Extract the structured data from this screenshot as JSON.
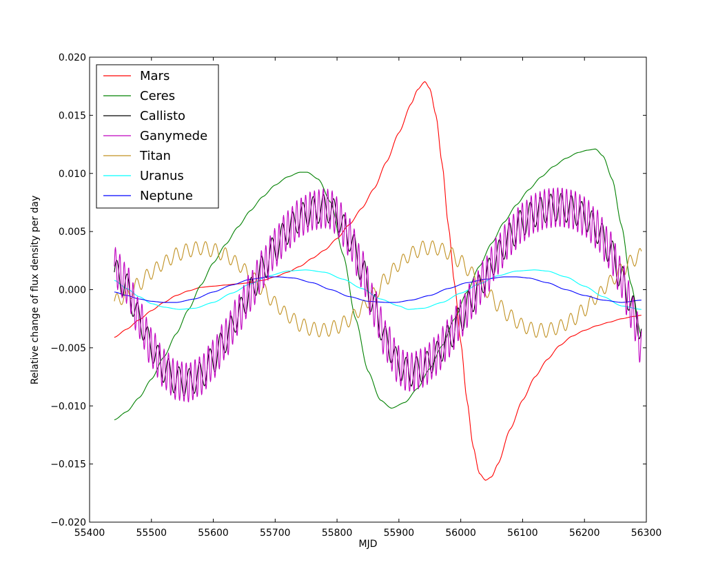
{
  "chart_data": {
    "type": "line",
    "title": "",
    "xlabel": "MJD",
    "ylabel": "Relative change of flux density per day",
    "xlim": [
      55400,
      56300
    ],
    "ylim": [
      -0.02,
      0.02
    ],
    "x_ticks": [
      55400,
      55500,
      55600,
      55700,
      55800,
      55900,
      56000,
      56100,
      56200,
      56300
    ],
    "y_ticks": [
      -0.02,
      -0.015,
      -0.01,
      -0.005,
      0.0,
      0.005,
      0.01,
      0.015,
      0.02
    ],
    "x_tick_labels": [
      "55400",
      "55500",
      "55600",
      "55700",
      "55800",
      "55900",
      "56000",
      "56100",
      "56200",
      "56300"
    ],
    "y_tick_labels": [
      "−0.020",
      "−0.015",
      "−0.010",
      "−0.005",
      "0.000",
      "0.005",
      "0.010",
      "0.015",
      "0.020"
    ],
    "grid": false,
    "legend_position": "top-left",
    "series": [
      {
        "name": "Mars",
        "color": "#ff0000",
        "x": [
          55440,
          55460,
          55480,
          55500,
          55520,
          55540,
          55560,
          55580,
          55600,
          55620,
          55640,
          55660,
          55680,
          55700,
          55720,
          55740,
          55760,
          55780,
          55800,
          55820,
          55840,
          55860,
          55880,
          55900,
          55920,
          55930,
          55942,
          55950,
          55960,
          55970,
          55980,
          55990,
          56000,
          56010,
          56020,
          56030,
          56040,
          56050,
          56060,
          56080,
          56100,
          56120,
          56140,
          56160,
          56180,
          56200,
          56220,
          56240,
          56260,
          56280,
          56292
        ],
        "y": [
          -0.0041,
          -0.0034,
          -0.0026,
          -0.0018,
          -0.0011,
          -0.0005,
          -0.0001,
          0.0002,
          0.0003,
          0.0004,
          0.0005,
          0.0006,
          0.0008,
          0.0011,
          0.0015,
          0.002,
          0.0027,
          0.0034,
          0.0044,
          0.0056,
          0.007,
          0.0087,
          0.011,
          0.0135,
          0.016,
          0.0172,
          0.0179,
          0.0173,
          0.015,
          0.0108,
          0.0055,
          0.0005,
          -0.0045,
          -0.0095,
          -0.0135,
          -0.0158,
          -0.0164,
          -0.0161,
          -0.015,
          -0.012,
          -0.0095,
          -0.0075,
          -0.006,
          -0.0048,
          -0.004,
          -0.0035,
          -0.0031,
          -0.0028,
          -0.0025,
          -0.0023,
          -0.0022
        ]
      },
      {
        "name": "Ceres",
        "color": "#008000",
        "x": [
          55440,
          55460,
          55480,
          55500,
          55520,
          55540,
          55560,
          55580,
          55600,
          55620,
          55640,
          55660,
          55680,
          55700,
          55720,
          55740,
          55752,
          55770,
          55790,
          55810,
          55830,
          55850,
          55870,
          55888,
          55910,
          55930,
          55950,
          55970,
          55990,
          56010,
          56030,
          56050,
          56070,
          56090,
          56110,
          56130,
          56150,
          56170,
          56190,
          56205,
          56218,
          56230,
          56245,
          56260,
          56275,
          56292
        ],
        "y": [
          -0.0112,
          -0.0105,
          -0.0093,
          -0.0077,
          -0.0058,
          -0.0038,
          -0.0017,
          0.0004,
          0.0023,
          0.0039,
          0.0054,
          0.0068,
          0.008,
          0.009,
          0.0097,
          0.0101,
          0.0101,
          0.0095,
          0.0075,
          0.003,
          -0.0025,
          -0.007,
          -0.0095,
          -0.0102,
          -0.0097,
          -0.0085,
          -0.0068,
          -0.0048,
          -0.0025,
          -0.0002,
          0.002,
          0.004,
          0.0058,
          0.0073,
          0.0086,
          0.0097,
          0.0106,
          0.0113,
          0.0118,
          0.012,
          0.0121,
          0.0115,
          0.0095,
          0.0055,
          0.0005,
          -0.004
        ]
      },
      {
        "name": "Callisto",
        "color": "#000000",
        "x": [
          55440,
          55460,
          55480,
          55500,
          55520,
          55540,
          55560,
          55580,
          55600,
          55620,
          55640,
          55660,
          55680,
          55700,
          55720,
          55740,
          55760,
          55780,
          55790,
          55800,
          55820,
          55840,
          55860,
          55880,
          55900,
          55910,
          55920,
          55940,
          55960,
          55980,
          56000,
          56020,
          56040,
          56060,
          56080,
          56100,
          56120,
          56140,
          56160,
          56180,
          56200,
          56220,
          56240,
          56260,
          56270,
          56280,
          56292
        ],
        "y": [
          0.0015,
          0.0002,
          -0.0025,
          -0.005,
          -0.0068,
          -0.0078,
          -0.008,
          -0.0074,
          -0.006,
          -0.0042,
          -0.0022,
          -0.0002,
          0.0018,
          0.0036,
          0.0051,
          0.0062,
          0.0068,
          0.007,
          0.0069,
          0.0063,
          0.0045,
          0.0018,
          -0.0015,
          -0.0045,
          -0.0065,
          -0.007,
          -0.0071,
          -0.0067,
          -0.0057,
          -0.0042,
          -0.0025,
          -0.0007,
          0.0011,
          0.003,
          0.0046,
          0.0058,
          0.0066,
          0.007,
          0.0071,
          0.0069,
          0.0063,
          0.0052,
          0.0035,
          0.001,
          -0.0005,
          -0.0018,
          -0.0035
        ]
      },
      {
        "name": "Ganymede",
        "color": "#bf00bf",
        "x": [
          55440,
          55460,
          55480,
          55500,
          55520,
          55540,
          55560,
          55580,
          55600,
          55620,
          55640,
          55660,
          55680,
          55700,
          55720,
          55740,
          55760,
          55780,
          55790,
          55800,
          55820,
          55840,
          55860,
          55880,
          55900,
          55910,
          55920,
          55940,
          55960,
          55980,
          56000,
          56020,
          56040,
          56060,
          56080,
          56100,
          56120,
          56140,
          56160,
          56180,
          56200,
          56220,
          56240,
          56260,
          56270,
          56280,
          56292
        ],
        "y": [
          0.002,
          0.0005,
          -0.0025,
          -0.005,
          -0.0068,
          -0.0078,
          -0.008,
          -0.0074,
          -0.006,
          -0.0042,
          -0.0022,
          -0.0002,
          0.0018,
          0.0036,
          0.0051,
          0.0062,
          0.0068,
          0.007,
          0.0069,
          0.0063,
          0.0045,
          0.0018,
          -0.0015,
          -0.0045,
          -0.0065,
          -0.007,
          -0.0071,
          -0.0067,
          -0.0057,
          -0.0042,
          -0.0025,
          -0.0007,
          0.0011,
          0.003,
          0.0046,
          0.0058,
          0.0066,
          0.007,
          0.0071,
          0.0069,
          0.0063,
          0.0052,
          0.0035,
          0.001,
          -0.0008,
          -0.0025,
          -0.005
        ]
      },
      {
        "name": "Titan",
        "color": "#c09020",
        "x": [
          55440,
          55460,
          55480,
          55500,
          55520,
          55540,
          55560,
          55580,
          55600,
          55620,
          55640,
          55660,
          55680,
          55700,
          55720,
          55740,
          55760,
          55780,
          55800,
          55820,
          55840,
          55860,
          55880,
          55900,
          55920,
          55940,
          55960,
          55980,
          56000,
          56020,
          56040,
          56060,
          56080,
          56100,
          56120,
          56140,
          56160,
          56180,
          56200,
          56220,
          56240,
          56260,
          56280,
          56292
        ],
        "y": [
          -0.001,
          -0.0005,
          0.0005,
          0.0015,
          0.0023,
          0.003,
          0.0034,
          0.0036,
          0.0034,
          0.003,
          0.0022,
          0.0012,
          0.0,
          -0.0012,
          -0.0022,
          -0.003,
          -0.0034,
          -0.0035,
          -0.0032,
          -0.0026,
          -0.0016,
          -0.0004,
          0.001,
          0.0022,
          0.0031,
          0.0036,
          0.0036,
          0.0032,
          0.0024,
          0.0013,
          0.0,
          -0.0013,
          -0.0023,
          -0.0031,
          -0.0035,
          -0.0035,
          -0.0032,
          -0.0026,
          -0.0017,
          -0.0006,
          0.0006,
          0.0017,
          0.0026,
          0.003
        ]
      },
      {
        "name": "Uranus",
        "color": "#00ffff",
        "x": [
          55440,
          55460,
          55480,
          55500,
          55520,
          55545,
          55570,
          55600,
          55630,
          55660,
          55690,
          55720,
          55750,
          55780,
          55810,
          55840,
          55870,
          55900,
          55915,
          55940,
          55970,
          56000,
          56030,
          56060,
          56090,
          56120,
          56140,
          56170,
          56200,
          56230,
          56260,
          56292
        ],
        "y": [
          0.0008,
          0.0001,
          -0.0006,
          -0.0012,
          -0.0015,
          -0.0017,
          -0.0016,
          -0.0011,
          -0.0003,
          0.0005,
          0.0012,
          0.0016,
          0.0017,
          0.0015,
          0.0009,
          0.0001,
          -0.0008,
          -0.0014,
          -0.0017,
          -0.0016,
          -0.0011,
          -0.0003,
          0.0005,
          0.0012,
          0.0016,
          0.0017,
          0.0016,
          0.0011,
          0.0003,
          -0.0006,
          -0.0014,
          -0.0017
        ]
      },
      {
        "name": "Neptune",
        "color": "#0000ff",
        "x": [
          55440,
          55460,
          55480,
          55500,
          55520,
          55540,
          55570,
          55600,
          55630,
          55660,
          55690,
          55705,
          55730,
          55760,
          55790,
          55820,
          55850,
          55880,
          55895,
          55920,
          55950,
          55980,
          56010,
          56040,
          56070,
          56090,
          56110,
          56140,
          56170,
          56200,
          56230,
          56260,
          56292
        ],
        "y": [
          -0.0002,
          -0.0005,
          -0.0008,
          -0.001,
          -0.0011,
          -0.0011,
          -0.0008,
          -0.0002,
          0.0004,
          0.0009,
          0.0011,
          0.0011,
          0.001,
          0.0006,
          0.0,
          -0.0006,
          -0.001,
          -0.0011,
          -0.0011,
          -0.0009,
          -0.0005,
          0.0001,
          0.0006,
          0.0009,
          0.0011,
          0.0011,
          0.001,
          0.0006,
          0.0,
          -0.0005,
          -0.0009,
          -0.0011,
          -0.0009
        ]
      }
    ],
    "ripple": {
      "Callisto": {
        "period": 16.7,
        "amplitude": 0.0012
      },
      "Ganymede": {
        "period": 7.15,
        "amplitude": 0.0017
      },
      "Titan": {
        "period": 15.95,
        "amplitude": 0.0006
      }
    }
  }
}
